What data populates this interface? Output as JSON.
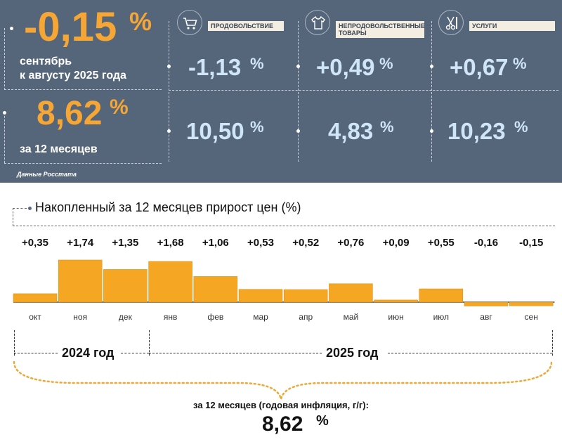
{
  "header": {
    "month_change": {
      "value": "-0,15",
      "unit": "%",
      "caption_line1": "сентябрь",
      "caption_line2": "к августу 2025 года"
    },
    "annual": {
      "value": "8,62",
      "unit": "%",
      "caption": "за 12 месяцев"
    },
    "categories": [
      {
        "label": "ПРОДОВОЛЬСТВИЕ",
        "icon": "shopping-cart-icon",
        "month": "-1,13",
        "annual": "10,50",
        "unit": "%"
      },
      {
        "label": "НЕПРОДОВОЛЬСТВЕННЫЕ ТОВАРЫ",
        "icon": "clothing-icon",
        "month": "+0,49",
        "annual": "4,83",
        "unit": "%"
      },
      {
        "label": "УСЛУГИ",
        "icon": "scissors-comb-icon",
        "month": "+0,67",
        "annual": "10,23",
        "unit": "%"
      }
    ],
    "source": "Данные Росстата",
    "colors": {
      "panel": "#55667a",
      "accent": "#f5a634",
      "value_blue": "#cfe6f8"
    }
  },
  "chart_data": {
    "type": "bar",
    "title": "Накопленный за 12 месяцев прирост цен (%)",
    "categories": [
      "окт",
      "ноя",
      "дек",
      "янв",
      "фев",
      "мар",
      "апр",
      "май",
      "июн",
      "июл",
      "авг",
      "сен"
    ],
    "values": [
      0.35,
      1.74,
      1.35,
      1.68,
      1.06,
      0.53,
      0.52,
      0.76,
      0.09,
      0.55,
      -0.16,
      -0.15
    ],
    "value_labels": [
      "+0,35",
      "+1,74",
      "+1,35",
      "+1,68",
      "+1,06",
      "+0,53",
      "+0,52",
      "+0,76",
      "+0,09",
      "+0,55",
      "-0,16",
      "-0,15"
    ],
    "bar_color": "#f5a623",
    "years": [
      {
        "label": "2024 год",
        "months": [
          "окт",
          "ноя",
          "дек"
        ]
      },
      {
        "label": "2025 год",
        "months": [
          "янв",
          "фев",
          "мар",
          "апр",
          "май",
          "июн",
          "июл",
          "авг",
          "сен"
        ]
      }
    ]
  },
  "summary": {
    "caption": "за 12 месяцев (годовая инфляция, г/г):",
    "value": "8,62",
    "unit": "%"
  }
}
